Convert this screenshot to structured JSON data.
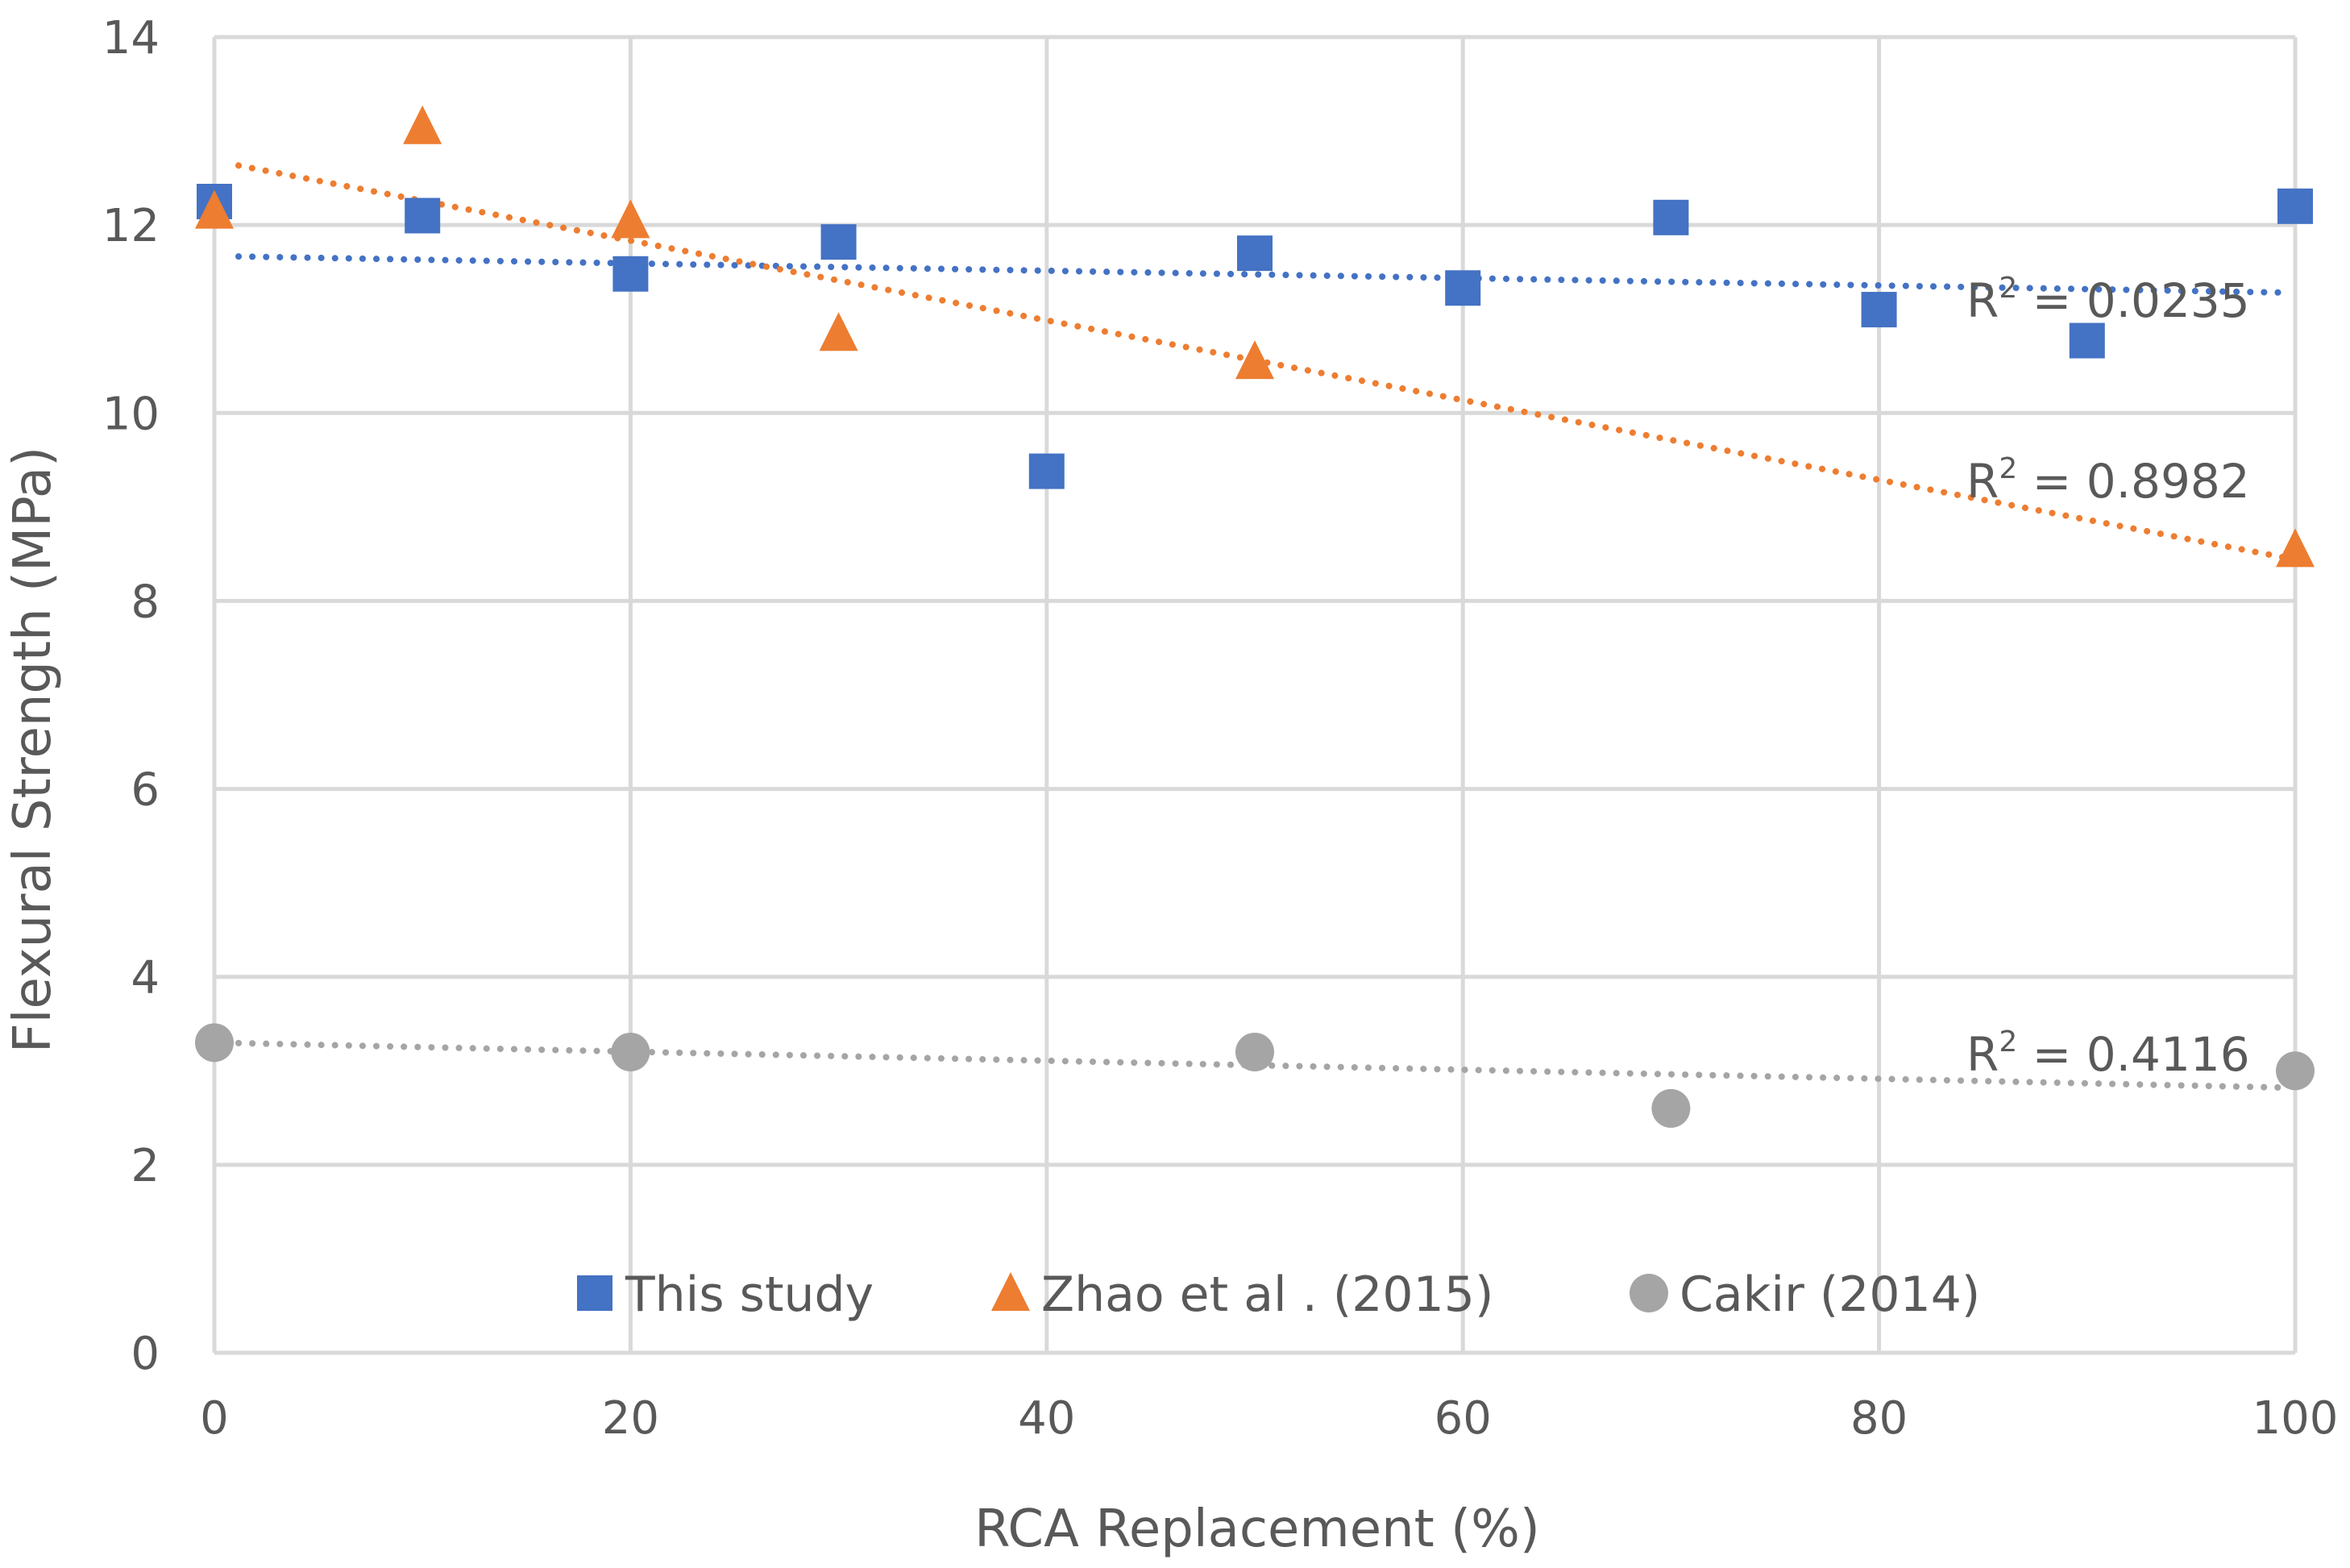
{
  "chart_data": {
    "type": "scatter",
    "title": "",
    "xlabel": "RCA Replacement (%)",
    "ylabel": "Flexural Strength (MPa)",
    "xlim": [
      0,
      100
    ],
    "ylim": [
      0,
      14
    ],
    "xticks": [
      0,
      20,
      40,
      60,
      80,
      100
    ],
    "yticks": [
      0,
      2,
      4,
      6,
      8,
      10,
      12,
      14
    ],
    "grid": true,
    "legend_position": "bottom-inside",
    "series": [
      {
        "name": "This study",
        "marker": "square",
        "color": "#4472C4",
        "x": [
          0,
          10,
          20,
          30,
          40,
          50,
          60,
          70,
          80,
          90,
          100
        ],
        "y": [
          12.25,
          12.1,
          11.48,
          11.82,
          9.38,
          11.7,
          11.33,
          12.08,
          11.1,
          10.77,
          12.2
        ],
        "trendline": {
          "type": "linear",
          "y_at_xmin": 11.67,
          "y_at_xmax": 11.28,
          "r2_label": "R² = 0.0235",
          "r2_prefix": "R",
          "r2_value": " = 0.0235"
        }
      },
      {
        "name": "Zhao et al . (2015)",
        "marker": "triangle",
        "color": "#ED7D31",
        "x": [
          0,
          10,
          20,
          30,
          50,
          100
        ],
        "y": [
          12.15,
          13.05,
          12.05,
          10.85,
          10.55,
          8.55
        ],
        "trendline": {
          "type": "linear",
          "y_at_xmin": 12.68,
          "y_at_xmax": 8.45,
          "r2_label": "R² = 0.8982",
          "r2_prefix": "R",
          "r2_value": " = 0.8982"
        }
      },
      {
        "name": "Cakir (2014)",
        "marker": "circle",
        "color": "#A5A5A5",
        "x": [
          0,
          20,
          50,
          70,
          100
        ],
        "y": [
          3.3,
          3.2,
          3.2,
          2.6,
          3.0
        ],
        "trendline": {
          "type": "linear",
          "y_at_xmin": 3.3,
          "y_at_xmax": 2.82,
          "r2_label": "R² = 0.4116",
          "r2_prefix": "R",
          "r2_value": " = 0.4116"
        }
      }
    ]
  }
}
